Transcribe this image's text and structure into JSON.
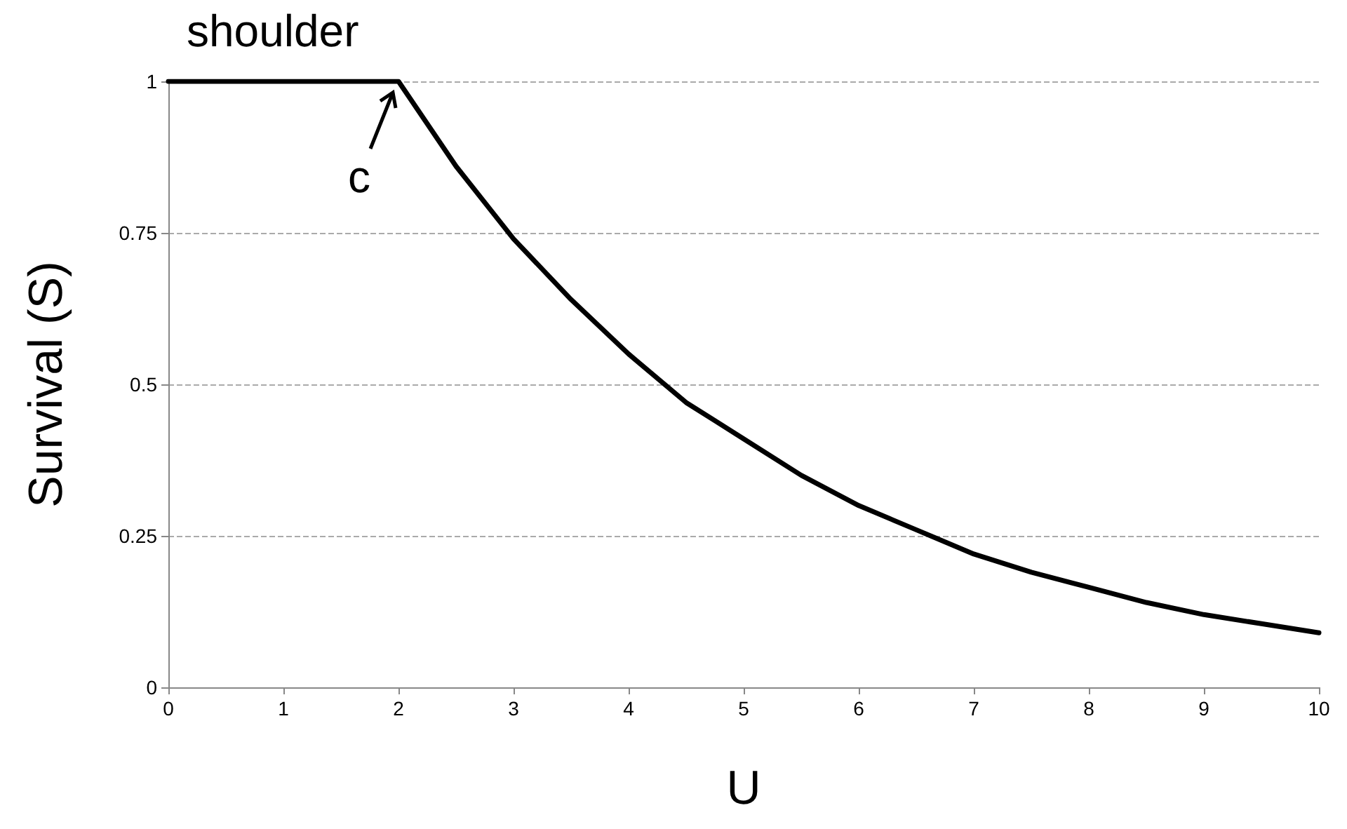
{
  "chart_data": {
    "type": "line",
    "xlabel": "U",
    "ylabel": "Survival (S)",
    "x": [
      0,
      0.5,
      1,
      1.5,
      2,
      2.5,
      3,
      3.5,
      4,
      4.5,
      5,
      5.5,
      6,
      6.5,
      7,
      7.5,
      8,
      8.5,
      9,
      9.5,
      10
    ],
    "series": [
      {
        "color": "#000000",
        "values": [
          1,
          1,
          1,
          1,
          1,
          0.86,
          0.74,
          0.64,
          0.55,
          0.47,
          0.41,
          0.35,
          0.3,
          0.26,
          0.22,
          0.19,
          0.165,
          0.14,
          0.12,
          0.105,
          0.09
        ]
      }
    ],
    "xlim": [
      0,
      10
    ],
    "xticks": [
      0,
      1,
      2,
      3,
      4,
      5,
      6,
      7,
      8,
      9,
      10
    ],
    "ylim": [
      0,
      1
    ],
    "yticks": [
      0,
      0.25,
      0.5,
      0.75,
      1
    ],
    "grid": "y",
    "marker": "none",
    "line_style": "solid",
    "annotations": [
      "shoulder",
      {
        "text": "c",
        "x": 2,
        "y": 1
      }
    ]
  }
}
